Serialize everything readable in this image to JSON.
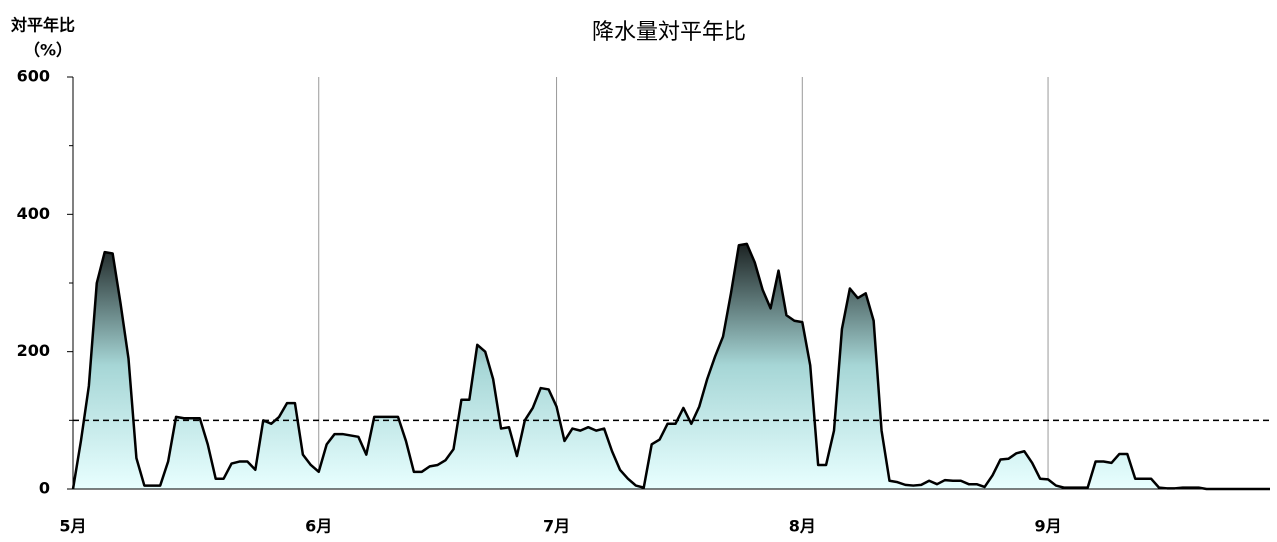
{
  "chart_data": {
    "type": "area",
    "title": "降水量対平年比",
    "y_label": [
      "対平年比",
      "（%）"
    ],
    "categories": [
      "5月",
      null,
      null,
      null,
      null,
      null,
      null,
      null,
      null,
      null,
      null,
      null,
      null,
      null,
      null,
      null,
      null,
      null,
      null,
      null,
      null,
      null,
      null,
      null,
      null,
      null,
      null,
      null,
      null,
      null,
      null,
      "6月",
      null,
      null,
      null,
      null,
      null,
      null,
      null,
      null,
      null,
      null,
      null,
      null,
      null,
      null,
      null,
      null,
      null,
      null,
      null,
      null,
      null,
      null,
      null,
      null,
      null,
      null,
      null,
      null,
      null,
      "7月",
      null,
      null,
      null,
      null,
      null,
      null,
      null,
      null,
      null,
      null,
      null,
      null,
      null,
      null,
      null,
      null,
      null,
      null,
      null,
      null,
      null,
      null,
      null,
      null,
      null,
      null,
      null,
      null,
      null,
      null,
      "8月",
      null,
      null,
      null,
      null,
      null,
      null,
      null,
      null,
      null,
      null,
      null,
      null,
      null,
      null,
      null,
      null,
      null,
      null,
      null,
      null,
      null,
      null,
      null,
      null,
      null,
      null,
      null,
      null,
      null,
      null,
      "9月",
      null,
      null,
      null,
      null,
      null,
      null,
      null,
      null,
      null,
      null,
      null,
      null,
      null,
      null,
      null,
      null,
      null,
      null,
      null,
      null,
      null,
      null,
      null,
      null,
      null,
      null,
      null,
      null
    ],
    "values": [
      0,
      70,
      150,
      300,
      345,
      343,
      270,
      190,
      45,
      5,
      5,
      5,
      40,
      105,
      103,
      103,
      103,
      65,
      15,
      15,
      37,
      40,
      40,
      28,
      100,
      95,
      105,
      125,
      125,
      50,
      35,
      25,
      65,
      80,
      80,
      78,
      76,
      50,
      105,
      105,
      105,
      105,
      70,
      25,
      25,
      33,
      35,
      42,
      58,
      130,
      130,
      210,
      200,
      160,
      88,
      90,
      48,
      100,
      118,
      147,
      145,
      120,
      70,
      88,
      85,
      90,
      85,
      88,
      55,
      28,
      15,
      5,
      2,
      65,
      72,
      95,
      95,
      118,
      95,
      120,
      160,
      193,
      222,
      285,
      355,
      357,
      330,
      290,
      263,
      318,
      253,
      245,
      243,
      180,
      35,
      35,
      85,
      233,
      292,
      278,
      285,
      245,
      85,
      12,
      10,
      6,
      5,
      6,
      12,
      7,
      13,
      12,
      12,
      7,
      7,
      3,
      20,
      43,
      44,
      52,
      55,
      38,
      15,
      14,
      5,
      2,
      2,
      2,
      2,
      40,
      40,
      38,
      51,
      51,
      15,
      15,
      15,
      2,
      1,
      1,
      2,
      2,
      2,
      0,
      0,
      0,
      0,
      0,
      0,
      0,
      0,
      0
    ],
    "ylim": [
      0,
      600
    ],
    "yticks": [
      0,
      200,
      400,
      600
    ],
    "yminor_ticks": [
      100,
      300,
      500
    ],
    "reference_line": 100,
    "line_color": "#000000",
    "gradient": [
      "#e8ffff",
      "#a6d6d6",
      "#1a2020"
    ],
    "grid": true
  }
}
